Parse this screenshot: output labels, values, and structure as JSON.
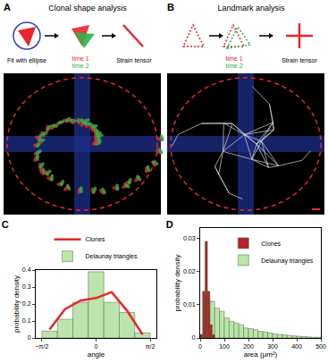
{
  "figure": {
    "panels": [
      {
        "letter": "A",
        "title": "Clonal shape analysis",
        "labels": [
          {
            "text": "Fit with ellipse"
          },
          {
            "text": "time 1",
            "color": "#e8262a"
          },
          {
            "text": "time 2",
            "color": "#2db34a"
          },
          {
            "text": "Strain tensor"
          }
        ]
      },
      {
        "letter": "B",
        "title": "Landmark analysis",
        "labels": [
          {
            "text": "time 1",
            "color": "#e8262a"
          },
          {
            "text": "time 2",
            "color": "#2db34a"
          },
          {
            "text": "Strain tensor"
          }
        ]
      }
    ]
  },
  "chart_data": [
    {
      "type": "histogram",
      "title": "C",
      "x_label": "angle",
      "y_label": "probability density",
      "xlim": [
        -1.75,
        1.75
      ],
      "xticks": [
        {
          "value": -1.5708,
          "label": "−π/2"
        },
        0,
        {
          "value": 1.5708,
          "label": "π/2"
        }
      ],
      "ylim": [
        0,
        0.4
      ],
      "yticks": [
        0,
        0.1,
        0.2,
        0.3,
        0.4
      ],
      "legend": "top",
      "grid": false,
      "series": [
        {
          "name": "Clones",
          "type": "line",
          "color": "#e8262a",
          "x": [
            -1.35,
            -0.9,
            -0.45,
            0,
            0.45,
            0.9,
            1.35
          ],
          "values": [
            0.05,
            0.17,
            0.22,
            0.235,
            0.27,
            0.16,
            0.02
          ]
        },
        {
          "name": "Delaunay triangles",
          "type": "histogram",
          "color": "#b9e3a8",
          "bins": [
            -1.5708,
            -1.122,
            -0.6732,
            -0.2244,
            0.2244,
            0.6732,
            1.122,
            1.5708
          ],
          "values": [
            0.04,
            0.11,
            0.21,
            0.39,
            0.21,
            0.15,
            0.03
          ]
        }
      ]
    },
    {
      "type": "histogram",
      "title": "D",
      "x_label": "area (μm²)",
      "y_label": "probability density",
      "xlim": [
        0,
        500
      ],
      "xticks": [
        0,
        100,
        200,
        300,
        400,
        500
      ],
      "ylim": [
        0,
        0.033
      ],
      "yticks": [
        0,
        0.01,
        0.02,
        0.03
      ],
      "legend": "upper right",
      "grid": false,
      "series": [
        {
          "name": "Clones",
          "type": "histogram",
          "color": "#b0171f",
          "bins": [
            0,
            10,
            20,
            30,
            40,
            50,
            60
          ],
          "values": [
            0.001,
            0.014,
            0.029,
            0.014,
            0.004,
            0.001
          ]
        },
        {
          "name": "Delaunay triangles",
          "type": "histogram",
          "color": "#b9e3a8",
          "bins": [
            0,
            20,
            40,
            60,
            80,
            100,
            120,
            140,
            160,
            180,
            200,
            220,
            240,
            260,
            280,
            300,
            320,
            340,
            360,
            380,
            400,
            420,
            440,
            460,
            480,
            500
          ],
          "values": [
            0.001,
            0.012,
            0.011,
            0.009,
            0.008,
            0.006,
            0.005,
            0.0045,
            0.004,
            0.003,
            0.0028,
            0.0025,
            0.002,
            0.0018,
            0.0015,
            0.0012,
            0.001,
            0.0009,
            0.0008,
            0.0006,
            0.0005,
            0.0004,
            0.0003,
            0.0002,
            0.0002
          ]
        }
      ]
    }
  ]
}
